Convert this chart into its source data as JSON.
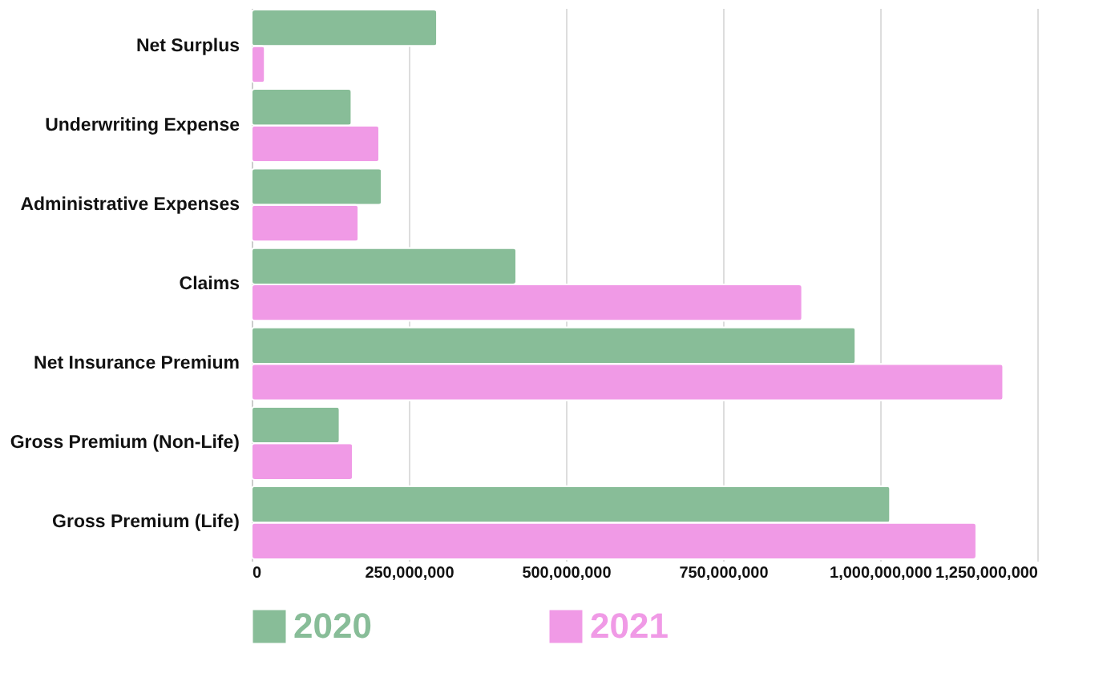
{
  "chart_data": {
    "type": "bar",
    "orientation": "horizontal",
    "categories": [
      "Net Surplus",
      "Underwriting Expense",
      "Administrative Expenses",
      "Claims",
      "Net Insurance Premium",
      "Gross Premium (Non-Life)",
      "Gross Premium (Life)"
    ],
    "series": [
      {
        "name": "2020",
        "color": "#88bd98",
        "values": [
          295000000,
          159000000,
          207000000,
          421000000,
          961000000,
          140000000,
          1016000000
        ]
      },
      {
        "name": "2021",
        "color": "#f09ae6",
        "values": [
          21000000,
          203000000,
          170000000,
          876000000,
          1196000000,
          161000000,
          1153000000
        ]
      }
    ],
    "xlim": [
      0,
      1250000000
    ],
    "xticks": [
      {
        "value": 0,
        "label": "0"
      },
      {
        "value": 250000000,
        "label": "250,000,000"
      },
      {
        "value": 500000000,
        "label": "500,000,000"
      },
      {
        "value": 750000000,
        "label": "750,000,000"
      },
      {
        "value": 1000000000,
        "label": "1,000,000,000"
      },
      {
        "value": 1250000000,
        "label": "1,250,000,000"
      }
    ],
    "grid": "x",
    "legend": "bottom"
  }
}
